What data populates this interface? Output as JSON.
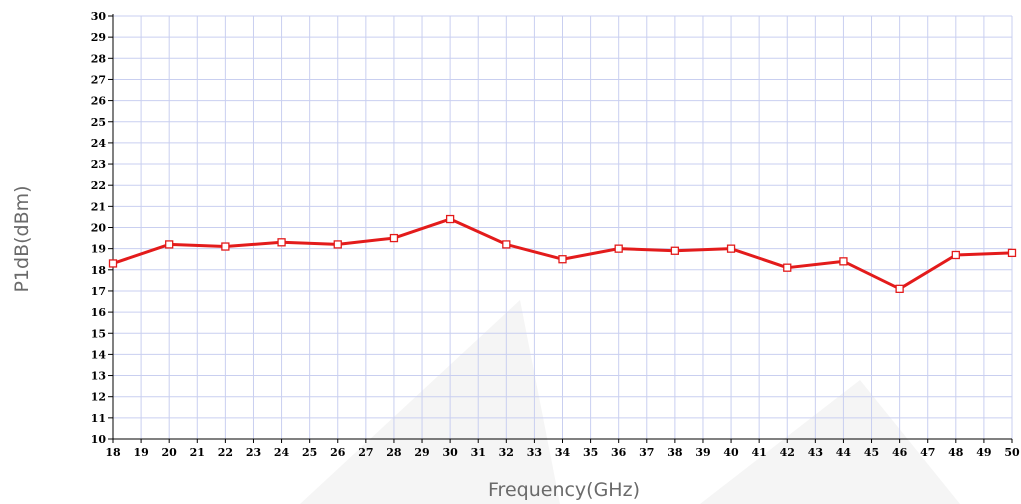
{
  "chart_data": {
    "type": "line",
    "xlabel": "Frequency(GHz)",
    "ylabel": "P1dB(dBm)",
    "xlim": [
      18,
      50
    ],
    "ylim": [
      10,
      30
    ],
    "x_ticks": [
      18,
      19,
      20,
      21,
      22,
      23,
      24,
      25,
      26,
      27,
      28,
      29,
      30,
      31,
      32,
      33,
      34,
      35,
      36,
      37,
      38,
      39,
      40,
      41,
      42,
      43,
      44,
      45,
      46,
      47,
      48,
      49,
      50
    ],
    "y_ticks": [
      10,
      11,
      12,
      13,
      14,
      15,
      16,
      17,
      18,
      19,
      20,
      21,
      22,
      23,
      24,
      25,
      26,
      27,
      28,
      29,
      30
    ],
    "grid": true,
    "series": [
      {
        "color": "#e31b1b",
        "marker": "square",
        "x": [
          18,
          20,
          22,
          24,
          26,
          28,
          30,
          32,
          34,
          36,
          38,
          40,
          42,
          44,
          46,
          48,
          50
        ],
        "y": [
          18.3,
          19.2,
          19.1,
          19.3,
          19.2,
          19.5,
          20.4,
          19.2,
          18.5,
          19.0,
          18.9,
          19.0,
          18.1,
          18.4,
          17.1,
          18.7,
          18.8
        ]
      }
    ]
  }
}
